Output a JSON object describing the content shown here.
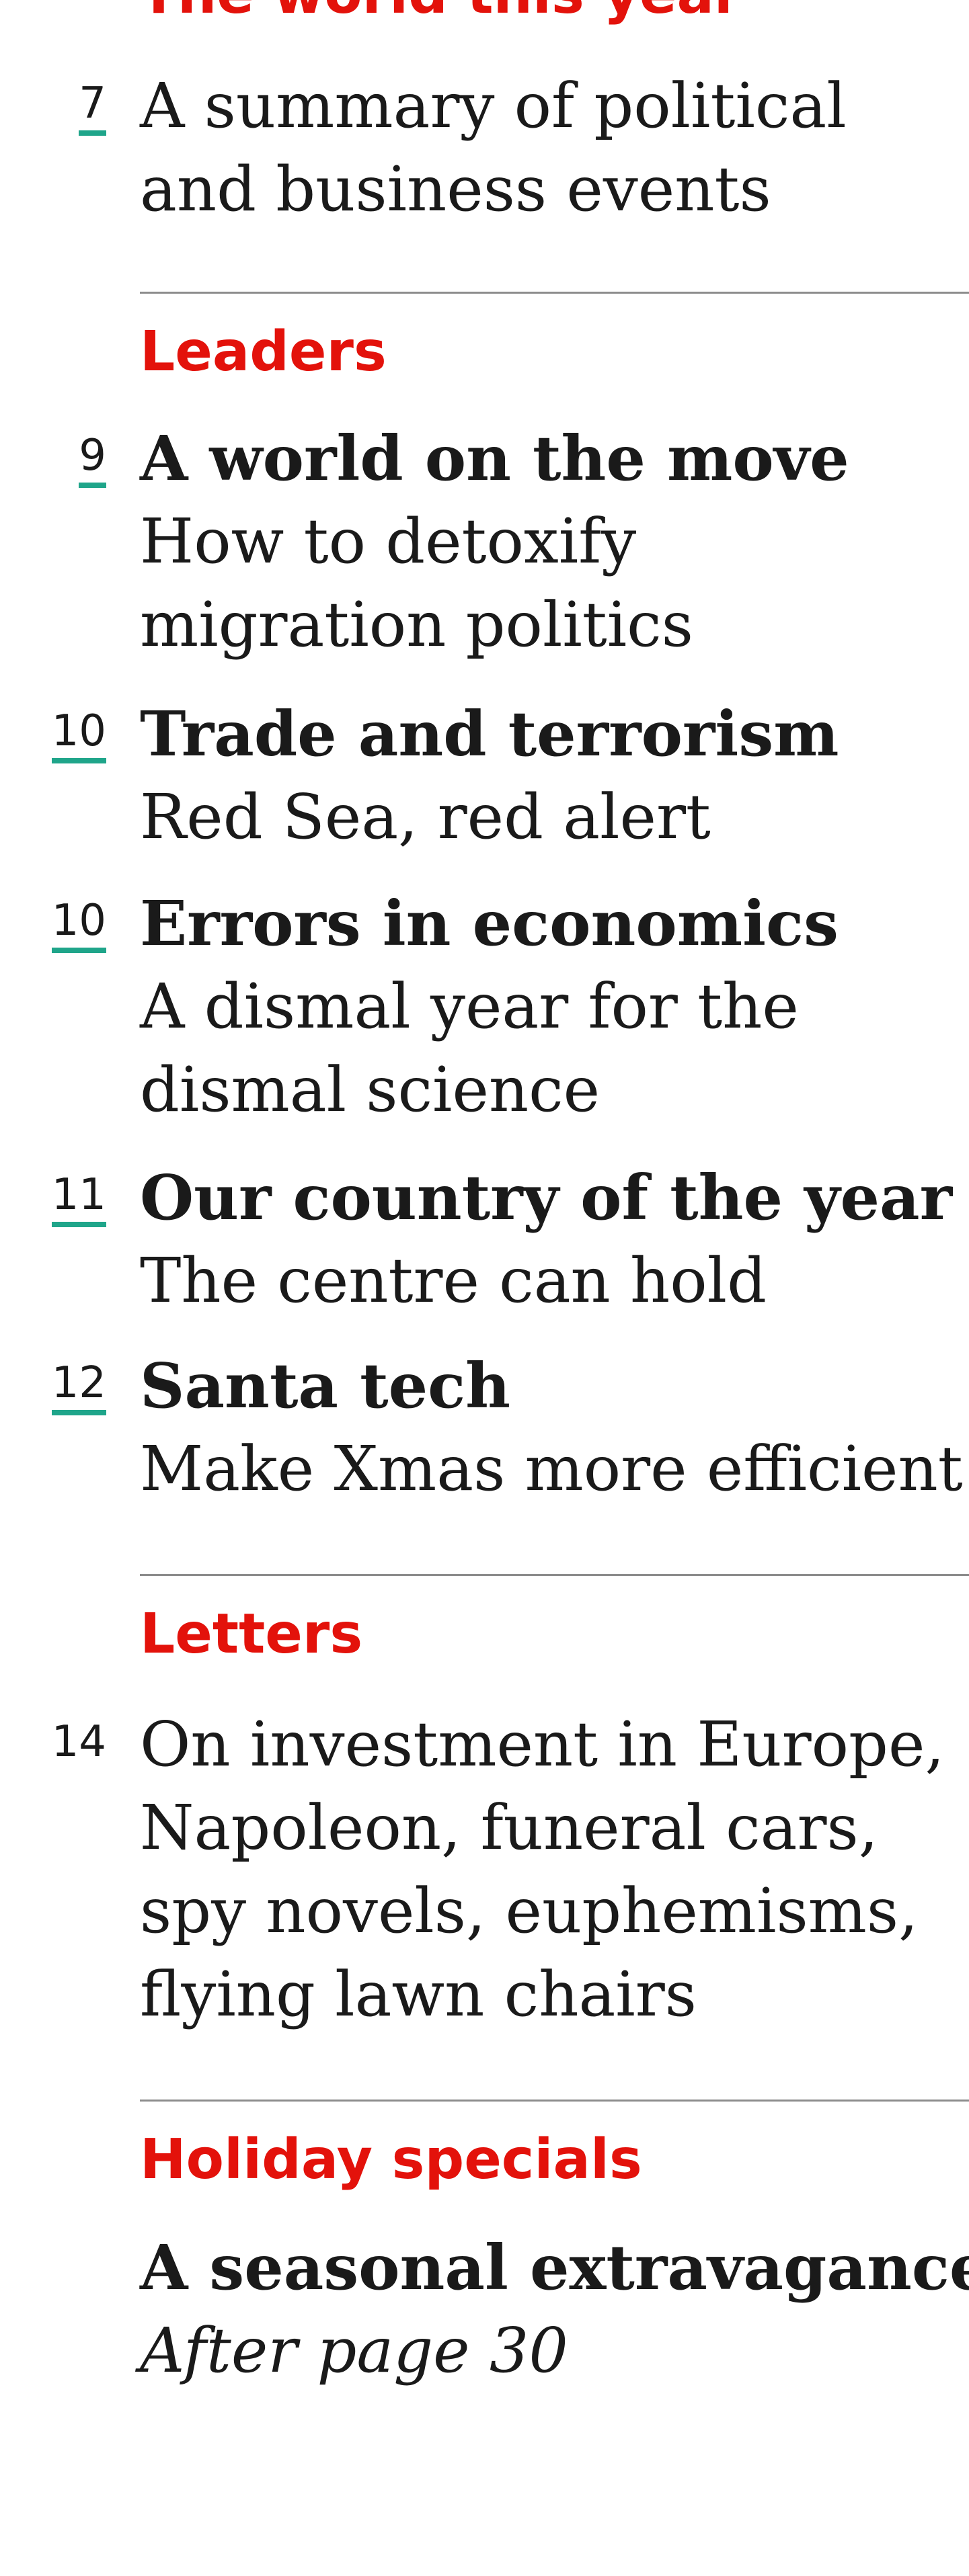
{
  "sections": {
    "world": {
      "heading": "The world this year",
      "entries": [
        {
          "page": "7",
          "text": "A summary of political and business events"
        }
      ]
    },
    "leaders": {
      "heading": "Leaders",
      "entries": [
        {
          "page": "9",
          "title": "A world on the move",
          "sub": "How to detoxify migration politics"
        },
        {
          "page": "10",
          "title": "Trade and terrorism",
          "sub": "Red Sea, red alert"
        },
        {
          "page": "10",
          "title": "Errors in economics",
          "sub": "A dismal year for the dismal science"
        },
        {
          "page": "11",
          "title": "Our country of the year",
          "sub": "The centre can hold"
        },
        {
          "page": "12",
          "title": "Santa tech",
          "sub": "Make Xmas more efficient"
        }
      ]
    },
    "letters": {
      "heading": "Letters",
      "entries": [
        {
          "page": "14",
          "text": "On investment in Europe, Napoleon, funeral cars, spy novels, euphemisms, flying lawn chairs"
        }
      ]
    },
    "holiday": {
      "heading": "Holiday specials",
      "title": "A seasonal extravagance",
      "note": "After page 30"
    }
  },
  "colors": {
    "section_heading": "#e3120b",
    "link_underline": "#1fa58a",
    "rule": "#8c8c8c"
  }
}
